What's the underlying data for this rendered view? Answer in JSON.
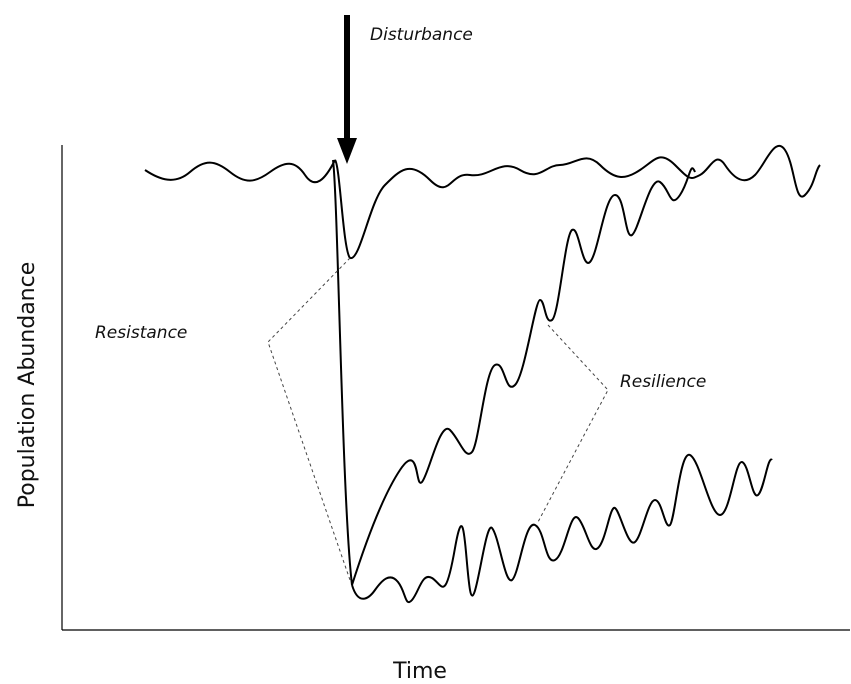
{
  "annotations": {
    "disturbance": "Disturbance",
    "resistance": "Resistance",
    "resilience": "Resilience"
  },
  "axes": {
    "y_label": "Population Abundance",
    "x_label": "Time"
  }
}
